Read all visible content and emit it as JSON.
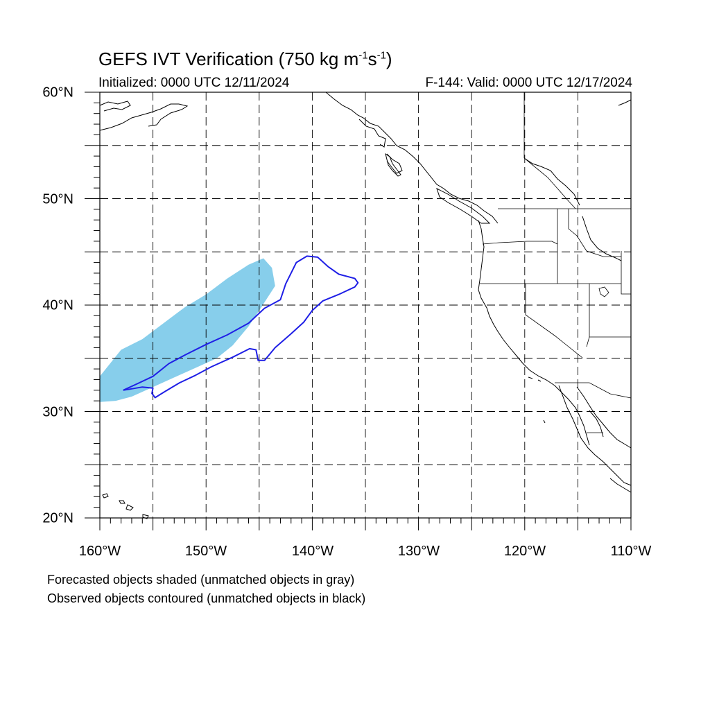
{
  "title": {
    "main": "GEFS IVT Verification (750 kg m",
    "sup1": "-1",
    "mid": "s",
    "sup2": "-1",
    "end": ")"
  },
  "initialized": "Initialized: 0000 UTC 12/11/2024",
  "valid": "F-144: Valid: 0000 UTC 12/17/2024",
  "lat_labels": [
    "60°N",
    "50°N",
    "40°N",
    "30°N",
    "20°N"
  ],
  "lon_labels": [
    "160°W",
    "150°W",
    "140°W",
    "130°W",
    "120°W",
    "110°W"
  ],
  "notes": [
    "Forecasted objects shaded (unmatched objects in gray)",
    "Observed objects contoured (unmatched objects in black)"
  ],
  "map_extent": {
    "lon": [
      -160,
      -110
    ],
    "lat": [
      20,
      60
    ]
  },
  "colors": {
    "forecast_fill": "#87ceeb",
    "observed_contour": "#1f1fe6",
    "coastline": "#000000",
    "grid": "#000000"
  },
  "forecast_object": {
    "label": "Forecasted object (shaded)",
    "outline_lonlat": [
      [
        -160.0,
        30.9
      ],
      [
        -158.5,
        31.0
      ],
      [
        -157.0,
        31.4
      ],
      [
        -155.0,
        32.3
      ],
      [
        -153.0,
        33.2
      ],
      [
        -151.0,
        34.1
      ],
      [
        -149.0,
        35.0
      ],
      [
        -147.5,
        36.2
      ],
      [
        -146.0,
        38.0
      ],
      [
        -144.8,
        39.8
      ],
      [
        -143.5,
        41.8
      ],
      [
        -143.8,
        43.5
      ],
      [
        -144.6,
        44.4
      ],
      [
        -146.0,
        43.8
      ],
      [
        -148.0,
        42.5
      ],
      [
        -150.0,
        41.0
      ],
      [
        -152.0,
        39.8
      ],
      [
        -154.0,
        38.3
      ],
      [
        -156.0,
        36.8
      ],
      [
        -158.0,
        35.8
      ],
      [
        -160.0,
        33.3
      ]
    ]
  },
  "observed_object": {
    "label": "Observed object (contoured)",
    "outline_lonlat": [
      [
        -157.8,
        32.0
      ],
      [
        -156.5,
        32.6
      ],
      [
        -155.0,
        33.3
      ],
      [
        -153.5,
        34.5
      ],
      [
        -152.0,
        35.3
      ],
      [
        -150.0,
        36.3
      ],
      [
        -148.0,
        37.2
      ],
      [
        -146.0,
        38.3
      ],
      [
        -144.5,
        39.7
      ],
      [
        -143.0,
        40.5
      ],
      [
        -142.5,
        42.0
      ],
      [
        -141.5,
        44.0
      ],
      [
        -140.5,
        44.6
      ],
      [
        -139.5,
        44.5
      ],
      [
        -138.5,
        43.6
      ],
      [
        -137.5,
        42.9
      ],
      [
        -136.0,
        42.5
      ],
      [
        -135.7,
        42.1
      ],
      [
        -136.0,
        41.7
      ],
      [
        -137.5,
        41.0
      ],
      [
        -139.0,
        40.4
      ],
      [
        -140.0,
        39.5
      ],
      [
        -140.8,
        38.4
      ],
      [
        -142.0,
        37.3
      ],
      [
        -143.5,
        36.0
      ],
      [
        -144.5,
        34.8
      ],
      [
        -145.1,
        34.8
      ],
      [
        -145.3,
        35.8
      ],
      [
        -145.9,
        35.9
      ],
      [
        -147.5,
        35.1
      ],
      [
        -149.5,
        34.2
      ],
      [
        -151.0,
        33.4
      ],
      [
        -152.5,
        32.7
      ],
      [
        -154.0,
        31.8
      ],
      [
        -154.8,
        31.3
      ],
      [
        -155.1,
        31.7
      ],
      [
        -155.0,
        32.2
      ],
      [
        -156.0,
        32.3
      ],
      [
        -157.2,
        32.1
      ],
      [
        -157.8,
        32.0
      ]
    ]
  }
}
